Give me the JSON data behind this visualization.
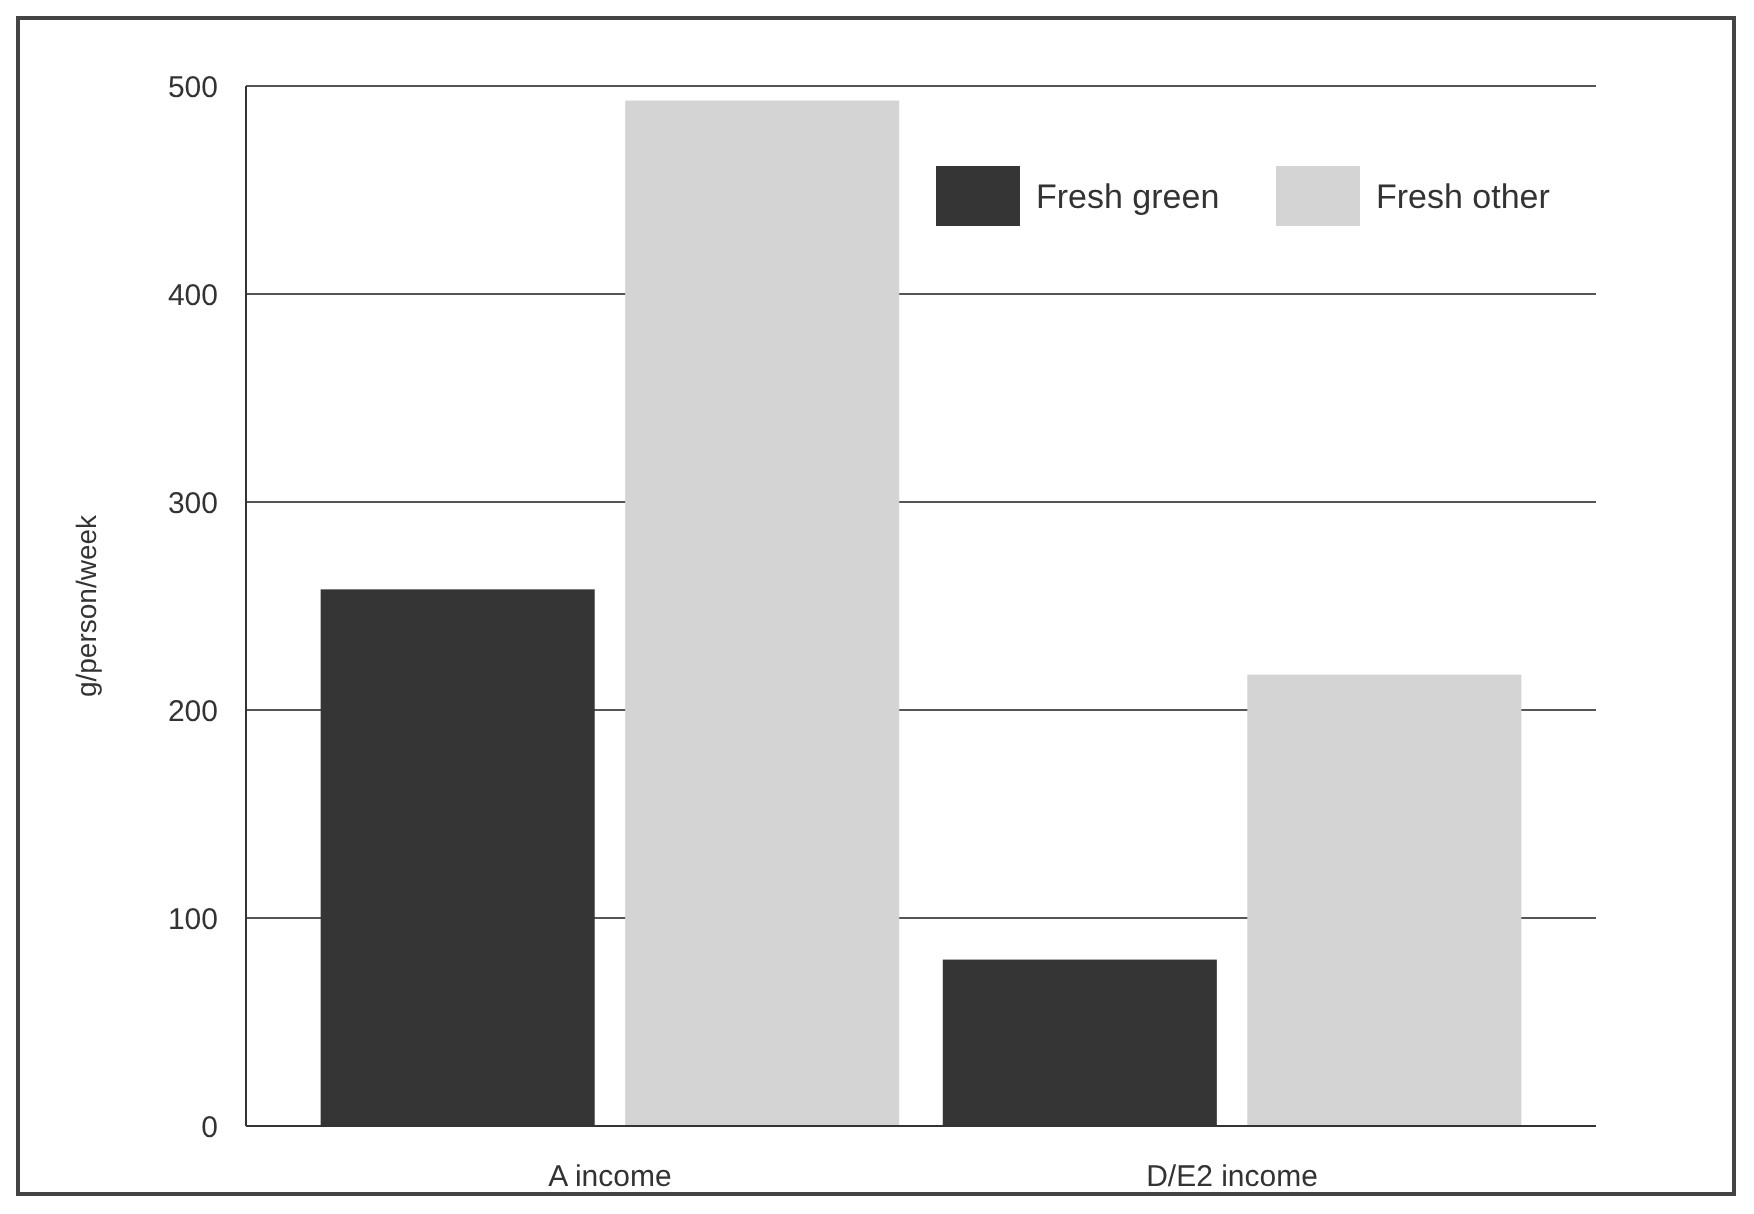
{
  "chart_data": {
    "type": "bar",
    "ylabel": "g/person/week",
    "categories": [
      "A income",
      "D/E2 income"
    ],
    "series": [
      {
        "name": "Fresh green",
        "color": "#353535",
        "values": [
          258,
          80
        ]
      },
      {
        "name": "Fresh other",
        "color": "#d4d4d4",
        "values": [
          493,
          217
        ]
      }
    ],
    "ylim": [
      0,
      500
    ],
    "yticks": [
      0,
      100,
      200,
      300,
      400,
      500
    ],
    "grid": "y",
    "legend": "top right"
  }
}
